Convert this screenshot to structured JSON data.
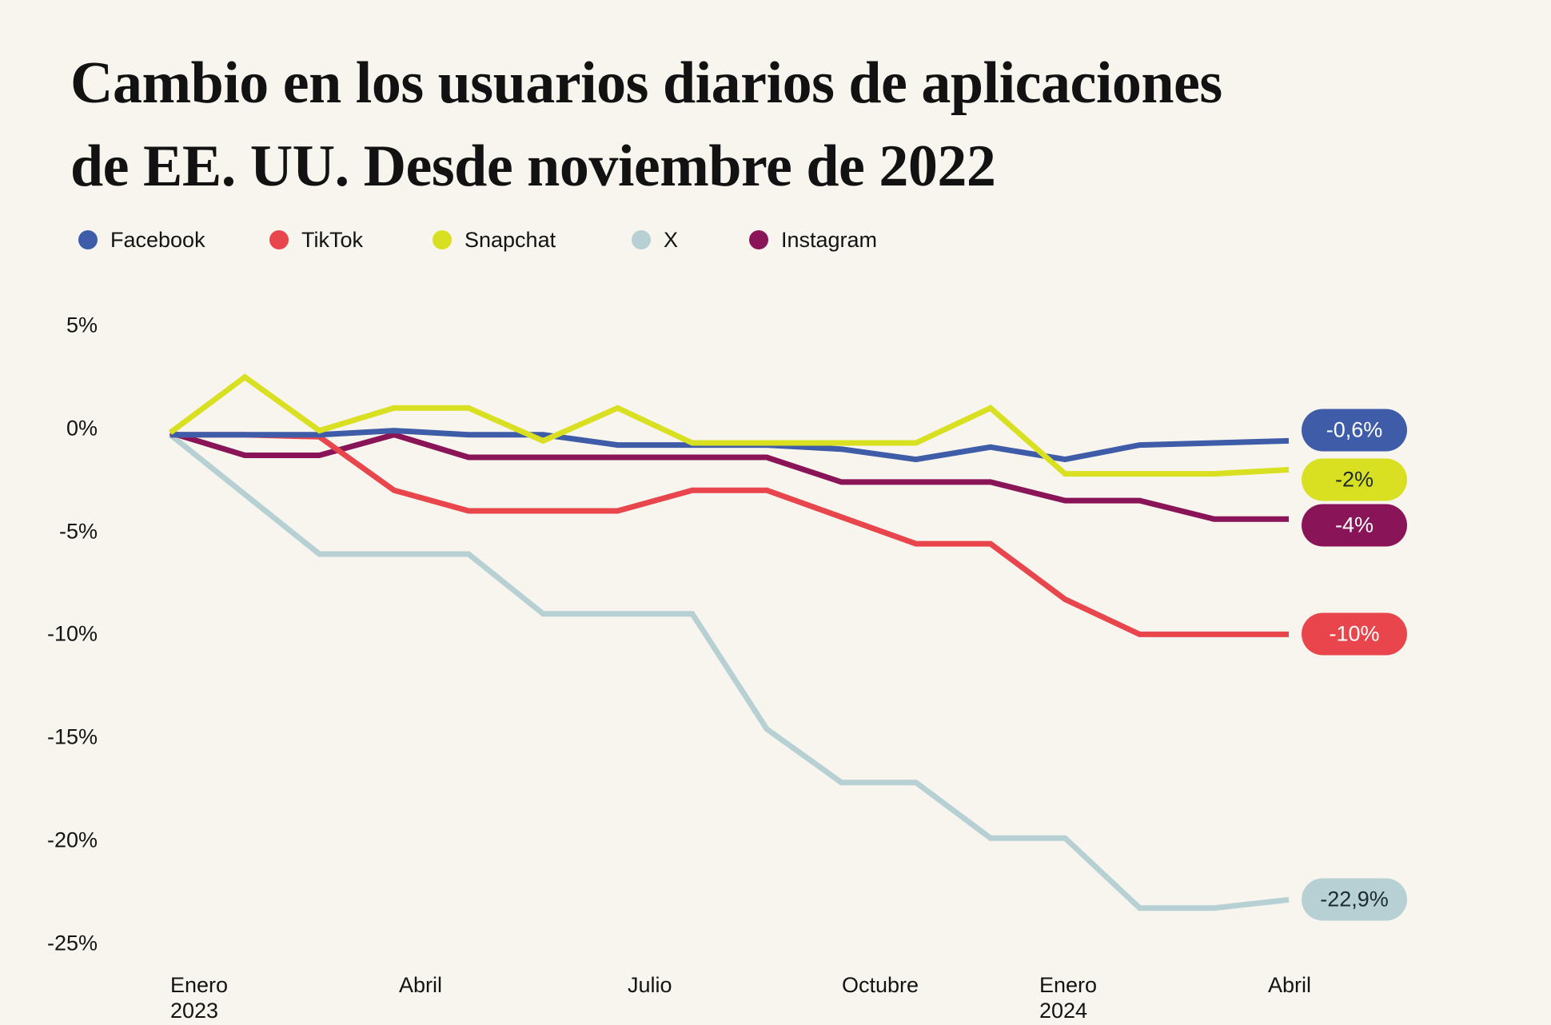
{
  "page": {
    "background": "#f8f5ee"
  },
  "header": {
    "title_line1": "Cambio en los usuarios diarios de aplicaciones",
    "title_line2": "de EE. UU. Desde noviembre de 2022"
  },
  "legend": {
    "items": [
      {
        "label": "Facebook",
        "color": "#3e5ca7"
      },
      {
        "label": "TikTok",
        "color": "#e8454d"
      },
      {
        "label": "Snapchat",
        "color": "#d9e021"
      },
      {
        "label": "X",
        "color": "#b7d0d4"
      },
      {
        "label": "Instagram",
        "color": "#8a1458"
      }
    ]
  },
  "chart_data": {
    "type": "line",
    "title": "Cambio en los usuarios diarios de aplicaciones de EE. UU. Desde noviembre de 2022",
    "xlabel": "",
    "ylabel": "",
    "ylim": [
      -25,
      5
    ],
    "grid": false,
    "legend_position": "top",
    "y_ticks": [
      {
        "label": "5%",
        "value": 5
      },
      {
        "label": "0%",
        "value": 0
      },
      {
        "label": "-5%",
        "value": -5
      },
      {
        "label": "-10%",
        "value": -10
      },
      {
        "label": "-15%",
        "value": -15
      },
      {
        "label": "-20%",
        "value": -20
      },
      {
        "label": "-25%",
        "value": -25
      }
    ],
    "x": [
      "Ene 2023",
      "Feb 2023",
      "Mar 2023",
      "Abr 2023",
      "May 2023",
      "Jun 2023",
      "Jul 2023",
      "Ago 2023",
      "Sep 2023",
      "Oct 2023",
      "Nov 2023",
      "Dic 2023",
      "Ene 2024",
      "Feb 2024",
      "Mar 2024",
      "Abr 2024"
    ],
    "x_ticks": [
      {
        "index": 0,
        "text": "Enero\n2023"
      },
      {
        "index": 3,
        "text": "Abril"
      },
      {
        "index": 6,
        "text": "Julio"
      },
      {
        "index": 9,
        "text": "Octubre"
      },
      {
        "index": 12,
        "text": "Enero\n2024"
      },
      {
        "index": 15,
        "text": "Abril"
      }
    ],
    "series": [
      {
        "name": "X",
        "color": "#b7d0d4",
        "end_label": "-22,9%",
        "end_label_text_color": "#1c2b30",
        "values": [
          -0.3,
          -3.2,
          -6.1,
          -6.1,
          -6.1,
          -9.0,
          -9.0,
          -9.0,
          -14.6,
          -17.2,
          -17.2,
          -19.9,
          -19.9,
          -23.3,
          -23.3,
          -22.9
        ]
      },
      {
        "name": "Instagram",
        "color": "#8a1458",
        "end_label": "-4%",
        "end_label_text_color": "#ffffff",
        "values": [
          -0.2,
          -1.3,
          -1.3,
          -0.3,
          -1.4,
          -1.4,
          -1.4,
          -1.4,
          -1.4,
          -2.6,
          -2.6,
          -2.6,
          -3.5,
          -3.5,
          -4.4,
          -4.4
        ]
      },
      {
        "name": "TikTok",
        "color": "#e8454d",
        "end_label": "-10%",
        "end_label_text_color": "#ffffff",
        "values": [
          -0.3,
          -0.3,
          -0.4,
          -3.0,
          -4.0,
          -4.0,
          -4.0,
          -3.0,
          -3.0,
          -4.3,
          -5.6,
          -5.6,
          -8.3,
          -10.0,
          -10.0,
          -10.0
        ]
      },
      {
        "name": "Facebook",
        "color": "#3e5ca7",
        "end_label": "-0,6%",
        "end_label_text_color": "#ffffff",
        "values": [
          -0.3,
          -0.3,
          -0.3,
          -0.1,
          -0.3,
          -0.3,
          -0.8,
          -0.8,
          -0.8,
          -1.0,
          -1.5,
          -0.9,
          -1.5,
          -0.8,
          -0.7,
          -0.6
        ]
      },
      {
        "name": "Snapchat",
        "color": "#d9e021",
        "end_label": "-2%",
        "end_label_text_color": "#1c2b30",
        "values": [
          -0.2,
          2.5,
          -0.1,
          1.0,
          1.0,
          -0.6,
          1.0,
          -0.7,
          -0.7,
          -0.7,
          -0.7,
          1.0,
          -2.2,
          -2.2,
          -2.2,
          -2.0
        ]
      }
    ]
  }
}
